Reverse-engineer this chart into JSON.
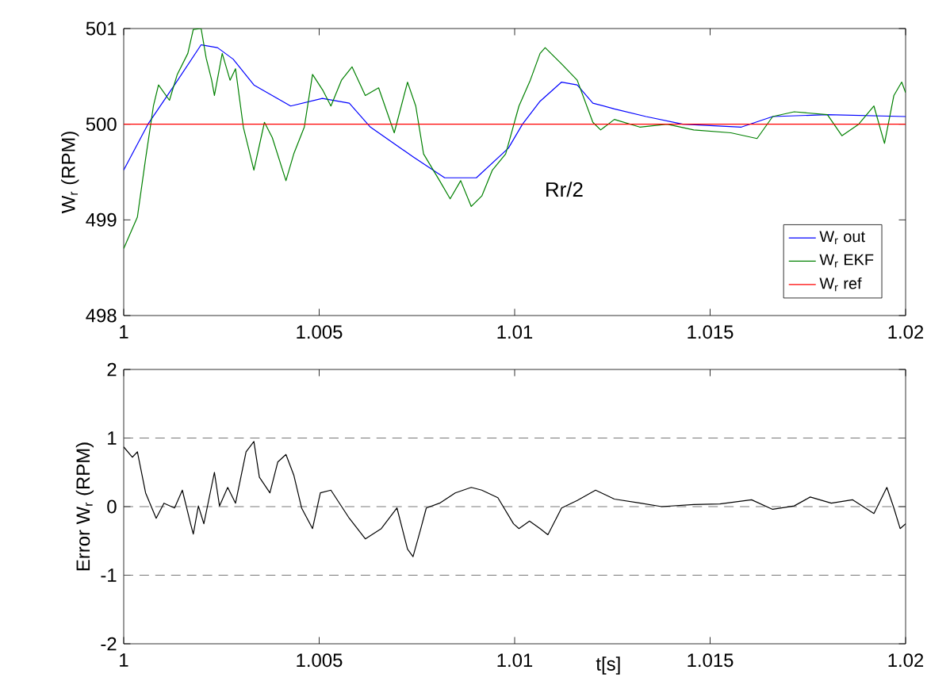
{
  "chart_data": [
    {
      "type": "line",
      "ylabel": "W$_{r}$ (RPM)",
      "xlim": [
        1,
        1.02
      ],
      "ylim": [
        498,
        501
      ],
      "xticks": [
        1,
        1.005,
        1.01,
        1.015,
        1.02
      ],
      "yticks": [
        498,
        499,
        500,
        501
      ],
      "legend": "bottom right",
      "annotations": [
        "Rr/2"
      ],
      "series": [
        {
          "name": "W$_{r}$ out",
          "color": "#0000ff",
          "x": [
            1.0,
            1.00062,
            1.0013,
            1.00198,
            1.0024,
            1.0028,
            1.00333,
            1.00427,
            1.00508,
            1.00577,
            1.00631,
            1.0074,
            1.00821,
            1.00902,
            1.00984,
            1.0102,
            1.01065,
            1.0112,
            1.0116,
            1.012,
            1.01255,
            1.01336,
            1.0143,
            1.0158,
            1.0166,
            1.018,
            1.02
          ],
          "values": [
            499.52,
            500.0,
            500.41,
            500.83,
            500.8,
            500.68,
            500.41,
            500.19,
            500.27,
            500.22,
            499.97,
            499.66,
            499.44,
            499.44,
            499.75,
            500.0,
            500.24,
            500.44,
            500.41,
            500.22,
            500.16,
            500.08,
            500.0,
            499.97,
            500.08,
            500.1,
            500.08
          ]
        },
        {
          "name": "W$_{r}$ EKF",
          "color": "#008000",
          "x": [
            1.0,
            1.00035,
            1.00056,
            1.00076,
            1.00089,
            1.00117,
            1.00137,
            1.00164,
            1.00178,
            1.00198,
            1.00211,
            1.00225,
            1.00232,
            1.00252,
            1.00272,
            1.00286,
            1.00306,
            1.00333,
            1.0036,
            1.0038,
            1.00415,
            1.00435,
            1.00462,
            1.00483,
            1.0051,
            1.0053,
            1.00557,
            1.00584,
            1.00618,
            1.00652,
            1.00692,
            1.00726,
            1.00747,
            1.00767,
            1.00808,
            1.00835,
            1.00862,
            1.00889,
            1.00916,
            1.00943,
            1.00977,
            1.01011,
            1.0104,
            1.01065,
            1.01078,
            1.0112,
            1.0116,
            1.012,
            1.0122,
            1.01255,
            1.0132,
            1.0139,
            1.01458,
            1.01553,
            1.0162,
            1.0166,
            1.01715,
            1.018,
            1.01837,
            1.0188,
            1.01919,
            1.01946,
            1.0197,
            1.0199,
            1.02
          ],
          "values": [
            498.7,
            499.03,
            499.64,
            500.19,
            500.41,
            500.25,
            500.52,
            500.74,
            500.99,
            501.0,
            500.69,
            500.46,
            500.3,
            500.74,
            500.46,
            500.58,
            499.97,
            499.52,
            500.02,
            499.86,
            499.41,
            499.69,
            499.97,
            500.52,
            500.35,
            500.19,
            500.46,
            500.6,
            500.3,
            500.38,
            499.91,
            500.44,
            500.19,
            499.69,
            499.41,
            499.22,
            499.41,
            499.14,
            499.25,
            499.52,
            499.69,
            500.19,
            500.46,
            500.74,
            500.8,
            500.63,
            500.46,
            500.02,
            499.94,
            500.05,
            499.97,
            500.0,
            499.94,
            499.91,
            499.85,
            500.08,
            500.13,
            500.1,
            499.88,
            500.0,
            500.19,
            499.8,
            500.3,
            500.44,
            500.33
          ]
        },
        {
          "name": "W$_{r}$ ref",
          "color": "#ff0000",
          "x": [
            1,
            1.02
          ],
          "values": [
            500,
            500
          ]
        }
      ]
    },
    {
      "type": "line",
      "xlabel": "t[s]",
      "ylabel": "Error W$_{r}$ (RPM)",
      "xlim": [
        1,
        1.02
      ],
      "ylim": [
        -2,
        2
      ],
      "xticks": [
        1,
        1.005,
        1.01,
        1.015,
        1.02
      ],
      "yticks": [
        -2,
        -1,
        0,
        1,
        2
      ],
      "ref_lines": [
        {
          "axis": "y",
          "value": 1,
          "color": "#555555",
          "line_style": "dashed"
        },
        {
          "axis": "y",
          "value": 0,
          "color": "#555555",
          "line_style": "dashed"
        },
        {
          "axis": "y",
          "value": -1,
          "color": "#555555",
          "line_style": "dashed"
        }
      ],
      "series": [
        {
          "color": "#000000",
          "x": [
            1.0,
            1.00022,
            1.00035,
            1.00056,
            1.00083,
            1.00103,
            1.0013,
            1.0015,
            1.00171,
            1.00178,
            1.00191,
            1.00205,
            1.00232,
            1.00245,
            1.00266,
            1.00286,
            1.00313,
            1.00333,
            1.00347,
            1.00374,
            1.00394,
            1.00415,
            1.00435,
            1.00455,
            1.00483,
            1.00503,
            1.0053,
            1.00577,
            1.00618,
            1.00659,
            1.00699,
            1.00726,
            1.0074,
            1.0076,
            1.00774,
            1.00808,
            1.00848,
            1.00889,
            1.00916,
            1.00957,
            1.00997,
            1.01011,
            1.01038,
            1.01065,
            1.01085,
            1.0112,
            1.0116,
            1.01207,
            1.01255,
            1.01322,
            1.01376,
            1.01458,
            1.01525,
            1.01606,
            1.0166,
            1.01715,
            1.01756,
            1.0181,
            1.01864,
            1.01919,
            1.01952,
            1.0197,
            1.01986,
            1.02
          ],
          "values": [
            0.87,
            0.72,
            0.8,
            0.2,
            -0.17,
            0.05,
            -0.02,
            0.24,
            -0.25,
            -0.4,
            0.01,
            -0.25,
            0.5,
            0.01,
            0.28,
            0.05,
            0.8,
            0.95,
            0.43,
            0.2,
            0.65,
            0.76,
            0.46,
            -0.02,
            -0.32,
            0.2,
            0.24,
            -0.17,
            -0.47,
            -0.32,
            -0.02,
            -0.62,
            -0.73,
            -0.32,
            -0.02,
            0.05,
            0.2,
            0.28,
            0.24,
            0.13,
            -0.25,
            -0.32,
            -0.21,
            -0.32,
            -0.41,
            -0.02,
            0.09,
            0.24,
            0.11,
            0.05,
            0.0,
            0.03,
            0.04,
            0.1,
            -0.04,
            0.01,
            0.14,
            0.05,
            0.1,
            -0.1,
            0.28,
            -0.02,
            -0.32,
            -0.25
          ]
        }
      ]
    }
  ]
}
